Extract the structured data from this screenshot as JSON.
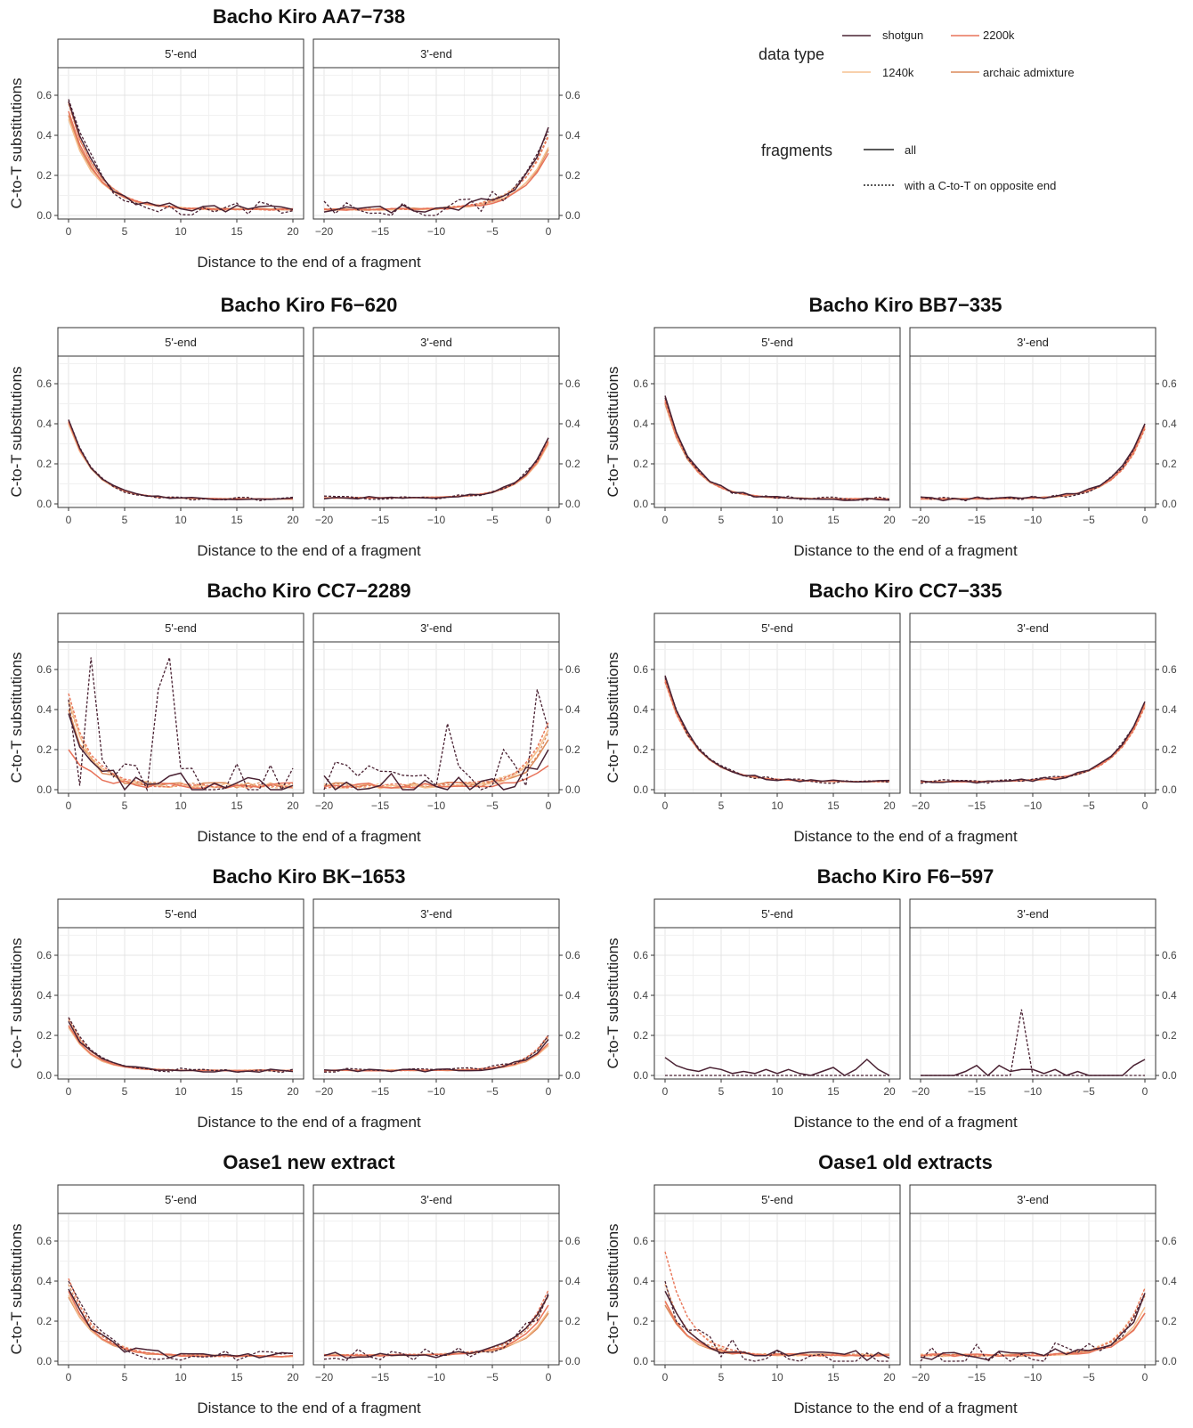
{
  "figure": {
    "facet_labels": [
      "5'-end",
      "3'-end"
    ],
    "xlabel": "Distance to the end of a fragment",
    "ylabel": "C-to-T substitutions",
    "x_ticks_5": [
      0,
      5,
      10,
      15,
      20
    ],
    "x_ticks_3": [
      -20,
      -15,
      -10,
      -5,
      0
    ],
    "y_ticks": [
      0.0,
      0.2,
      0.4,
      0.6
    ],
    "y_tick_labels": [
      "0.0",
      "0.2",
      "0.4",
      "0.6"
    ],
    "ylim": [
      0,
      0.72
    ]
  },
  "legend": {
    "data_type_title": "data type",
    "data_types": [
      {
        "key": "shotgun",
        "label": "shotgun",
        "color": "#4a2233"
      },
      {
        "key": "k2200",
        "label": "2200k",
        "color": "#e8735a"
      },
      {
        "key": "k1240",
        "label": "1240k",
        "color": "#f5c090"
      },
      {
        "key": "archaic",
        "label": "archaic admixture",
        "color": "#db8a5a"
      }
    ],
    "fragments_title": "fragments",
    "fragments": [
      {
        "key": "all",
        "label": "all",
        "dash": "solid"
      },
      {
        "key": "opp",
        "label": "with a C-to-T on opposite end",
        "dash": "dotted"
      }
    ]
  },
  "chart_data": [
    {
      "type": "line",
      "title": "Bacho Kiro AA7−738",
      "start5": [
        0.57,
        0.52,
        0.48,
        0.5,
        0.59,
        0.58
      ],
      "start3": [
        0.44,
        0.31,
        0.34,
        0.33,
        0.41,
        0.42
      ],
      "base5": 0.03,
      "base3": 0.03,
      "decay": 2.4,
      "noise": 0.01,
      "spiky_opp": true,
      "spike_amp": 0.05
    },
    {
      "type": "line",
      "title": "Bacho Kiro F6−620",
      "start5": [
        0.42,
        0.41,
        0.4,
        0.4,
        0.43,
        0.42
      ],
      "start3": [
        0.33,
        0.31,
        0.3,
        0.3,
        0.34,
        0.33
      ],
      "base5": 0.025,
      "base3": 0.03,
      "decay": 2.2,
      "noise": 0.003,
      "spiky_opp": false,
      "spike_amp": 0.01
    },
    {
      "type": "line",
      "title": "Bacho Kiro BB7−335",
      "start5": [
        0.54,
        0.52,
        0.51,
        0.5,
        0.53,
        0.53
      ],
      "start3": [
        0.4,
        0.39,
        0.38,
        0.38,
        0.39,
        0.4
      ],
      "base5": 0.025,
      "base3": 0.025,
      "decay": 2.3,
      "noise": 0.004,
      "spiky_opp": false,
      "spike_amp": 0.01
    },
    {
      "type": "line",
      "title": "Bacho Kiro CC7−2289",
      "start5": [
        0.38,
        0.2,
        0.45,
        0.4,
        0.5,
        0.45
      ],
      "start3": [
        0.2,
        0.12,
        0.3,
        0.25,
        0.35,
        0.3
      ],
      "base5": 0.02,
      "base3": 0.02,
      "decay": 1.8,
      "noise": 0.03,
      "spiky_opp": true,
      "spike_amp": 0.12,
      "spikes5": [
        [
          2,
          0.66
        ],
        [
          9,
          0.66
        ],
        [
          8,
          0.5
        ]
      ],
      "spikes3": [
        [
          -9,
          0.33
        ],
        [
          -1,
          0.5
        ],
        [
          -4,
          0.2
        ]
      ]
    },
    {
      "type": "line",
      "title": "Bacho Kiro CC7−335",
      "start5": [
        0.57,
        0.55,
        0.54,
        0.54,
        0.56,
        0.56
      ],
      "start3": [
        0.44,
        0.43,
        0.42,
        0.42,
        0.43,
        0.44
      ],
      "base5": 0.04,
      "base3": 0.04,
      "decay": 2.6,
      "noise": 0.004,
      "spiky_opp": false,
      "spike_amp": 0.01
    },
    {
      "type": "line",
      "title": "Bacho Kiro BK−1653",
      "start5": [
        0.27,
        0.25,
        0.24,
        0.24,
        0.3,
        0.29
      ],
      "start3": [
        0.18,
        0.16,
        0.15,
        0.15,
        0.21,
        0.2
      ],
      "base5": 0.025,
      "base3": 0.025,
      "decay": 2.0,
      "noise": 0.004,
      "spiky_opp": false,
      "spike_amp": 0.01
    },
    {
      "type": "line",
      "title": "Bacho Kiro F6−597",
      "only_shotgun": true,
      "shot5": [
        0.09,
        0.05,
        0.03,
        0.02,
        0.04,
        0.03,
        0.01,
        0.02,
        0.01,
        0.03,
        0.01,
        0.03,
        0.01,
        0.0,
        0.02,
        0.04,
        0.0,
        0.03,
        0.08,
        0.03,
        0.0
      ],
      "shot3": [
        0.0,
        0.0,
        0.0,
        0.0,
        0.02,
        0.05,
        0.0,
        0.05,
        0.02,
        0.03,
        0.03,
        0.01,
        0.03,
        0.0,
        0.02,
        0.0,
        0.0,
        0.0,
        0.0,
        0.05,
        0.08
      ],
      "opp5": [
        0.0,
        0.0,
        0.0,
        0.0,
        0.0,
        0.0,
        0.0,
        0.0,
        0.0,
        0.0,
        0.0,
        0.0,
        0.0,
        0.0,
        0.0,
        0.0,
        0.0,
        0.0,
        0.0,
        0.0,
        0.0
      ],
      "opp3": [
        0.0,
        0.0,
        0.0,
        0.0,
        0.0,
        0.0,
        0.0,
        0.0,
        0.0,
        0.33,
        0.0,
        0.0,
        0.0,
        0.0,
        0.0,
        0.0,
        0.0,
        0.0,
        0.0,
        0.0,
        0.0
      ]
    },
    {
      "type": "line",
      "title": "Oase1 new extract",
      "start5": [
        0.36,
        0.35,
        0.33,
        0.32,
        0.43,
        0.4
      ],
      "start3": [
        0.33,
        0.28,
        0.25,
        0.24,
        0.37,
        0.34
      ],
      "base5": 0.025,
      "base3": 0.03,
      "decay": 2.3,
      "noise": 0.008,
      "spiky_opp": true,
      "spike_amp": 0.03
    },
    {
      "type": "line",
      "title": "Oase1 old extracts",
      "start5": [
        0.35,
        0.3,
        0.3,
        0.28,
        0.57,
        0.4
      ],
      "start3": [
        0.34,
        0.24,
        0.27,
        0.24,
        0.38,
        0.34
      ],
      "base5": 0.03,
      "base3": 0.03,
      "decay": 2.0,
      "noise": 0.012,
      "spiky_opp": true,
      "spike_amp": 0.06
    }
  ]
}
